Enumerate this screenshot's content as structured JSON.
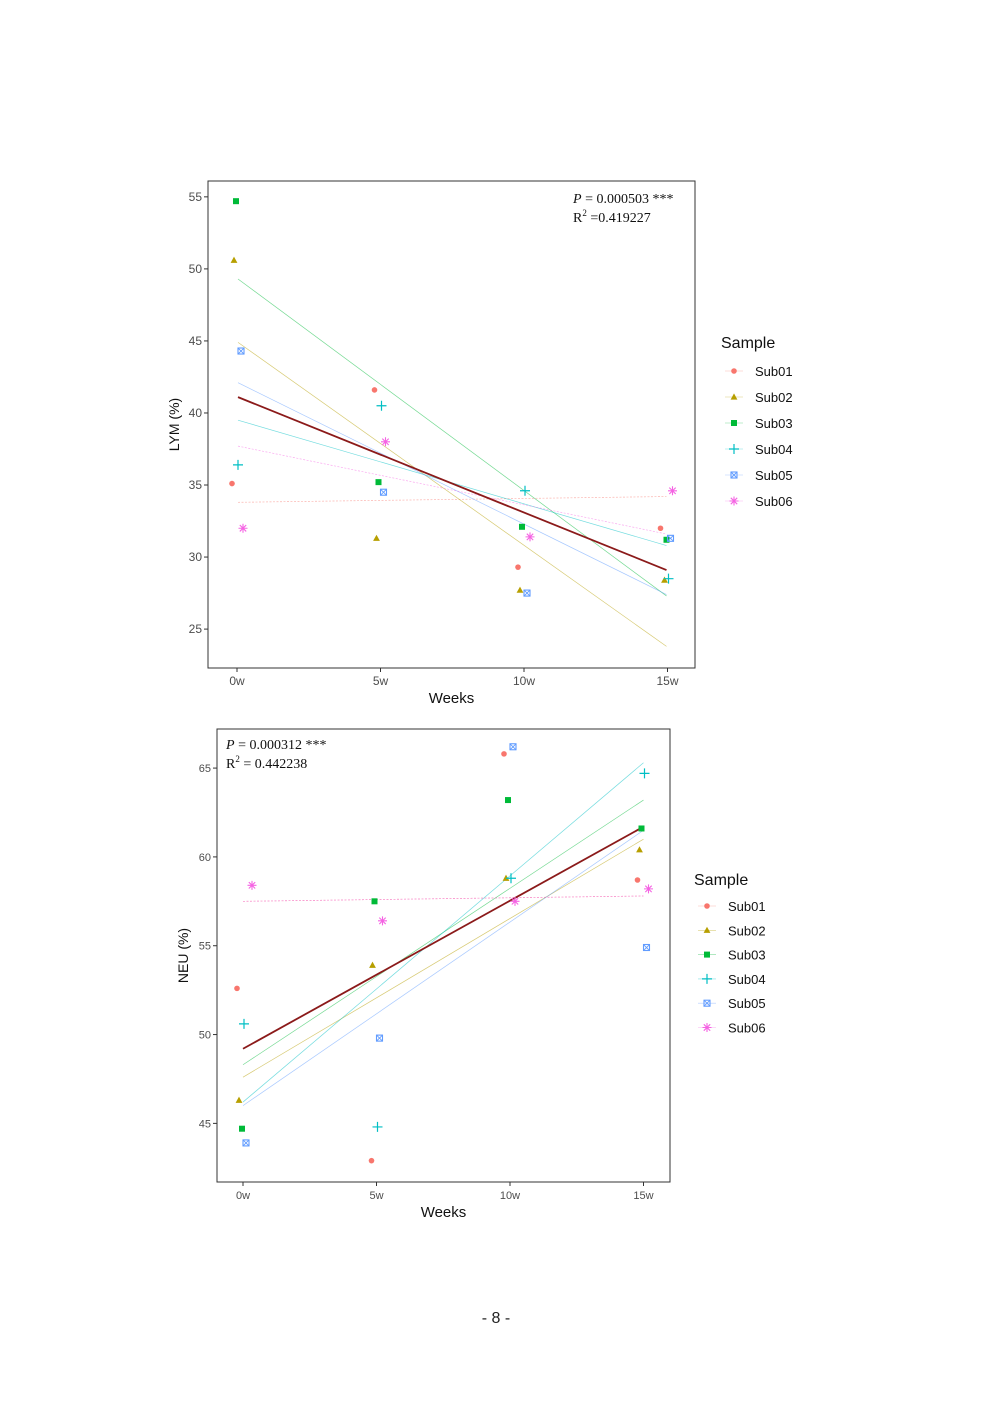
{
  "palette": {
    "Sub01": "#F8766D",
    "Sub02": "#B79F00",
    "Sub03": "#00BA38",
    "Sub04": "#00BFC4",
    "Sub05": "#619CFF",
    "Sub06": "#F564E3",
    "overall_fit": "#8B1A1A"
  },
  "chart_data": [
    {
      "type": "scatter",
      "xlabel": "Weeks",
      "ylabel": "LYM (%)",
      "categories": [
        "0w",
        "5w",
        "10w",
        "15w"
      ],
      "yticks": [
        25,
        30,
        35,
        40,
        45,
        50,
        55
      ],
      "ylim": [
        22.3,
        56.1
      ],
      "annotation": {
        "p_label": "P",
        "p_value": "= 0.000503 ***",
        "r2_label": "R",
        "r2_sup": "2",
        "r2_value": " =0.419227"
      },
      "legend": {
        "title": "Sample",
        "position": "right"
      },
      "series": [
        {
          "name": "Sub01",
          "shape": "circle",
          "values": [
            35.1,
            41.6,
            29.3,
            32.0
          ],
          "fit": [
            33.8,
            34.2
          ]
        },
        {
          "name": "Sub02",
          "shape": "triangle",
          "values": [
            50.6,
            31.3,
            27.7,
            28.4
          ],
          "fit": [
            44.9,
            23.8
          ]
        },
        {
          "name": "Sub03",
          "shape": "square",
          "values": [
            54.7,
            35.2,
            32.1,
            31.2
          ],
          "fit": [
            49.3,
            27.3
          ]
        },
        {
          "name": "Sub04",
          "shape": "plus",
          "values": [
            36.4,
            40.5,
            34.6,
            28.5
          ],
          "fit": [
            39.5,
            30.8
          ]
        },
        {
          "name": "Sub05",
          "shape": "boxx",
          "values": [
            44.3,
            34.5,
            27.5,
            31.3
          ],
          "fit": [
            42.1,
            27.4
          ]
        },
        {
          "name": "Sub06",
          "shape": "star",
          "values": [
            32.0,
            38.0,
            31.4,
            34.6
          ],
          "fit": [
            37.7,
            31.6
          ]
        }
      ],
      "overall_fit": [
        41.1,
        29.1
      ]
    },
    {
      "type": "scatter",
      "xlabel": "Weeks",
      "ylabel": "NEU (%)",
      "categories": [
        "0w",
        "5w",
        "10w",
        "15w"
      ],
      "yticks": [
        45,
        50,
        55,
        60,
        65
      ],
      "ylim": [
        41.7,
        67.2
      ],
      "annotation": {
        "p_label": "P",
        "p_value": "= 0.000312 ***",
        "r2_label": "R",
        "r2_sup": "2",
        "r2_value": " = 0.442238"
      },
      "legend": {
        "title": "Sample",
        "position": "right"
      },
      "series": [
        {
          "name": "Sub01",
          "shape": "circle",
          "values": [
            52.6,
            42.9,
            65.8,
            58.7
          ],
          "fit": [
            57.5,
            57.8
          ]
        },
        {
          "name": "Sub02",
          "shape": "triangle",
          "values": [
            46.3,
            53.9,
            58.8,
            60.4
          ],
          "fit": [
            47.6,
            61.0
          ]
        },
        {
          "name": "Sub03",
          "shape": "square",
          "values": [
            44.7,
            57.5,
            63.2,
            61.6
          ],
          "fit": [
            48.3,
            63.2
          ]
        },
        {
          "name": "Sub04",
          "shape": "plus",
          "values": [
            50.6,
            44.8,
            58.8,
            64.7
          ],
          "fit": [
            46.2,
            65.3
          ]
        },
        {
          "name": "Sub05",
          "shape": "boxx",
          "values": [
            43.9,
            49.8,
            66.2,
            54.9
          ],
          "fit": [
            46.0,
            61.5
          ]
        },
        {
          "name": "Sub06",
          "shape": "star",
          "values": [
            58.4,
            56.4,
            57.5,
            58.2
          ],
          "fit": [
            57.5,
            57.8
          ]
        }
      ],
      "overall_fit": [
        49.2,
        61.7
      ]
    }
  ],
  "page": {
    "number": "- 8 -"
  }
}
